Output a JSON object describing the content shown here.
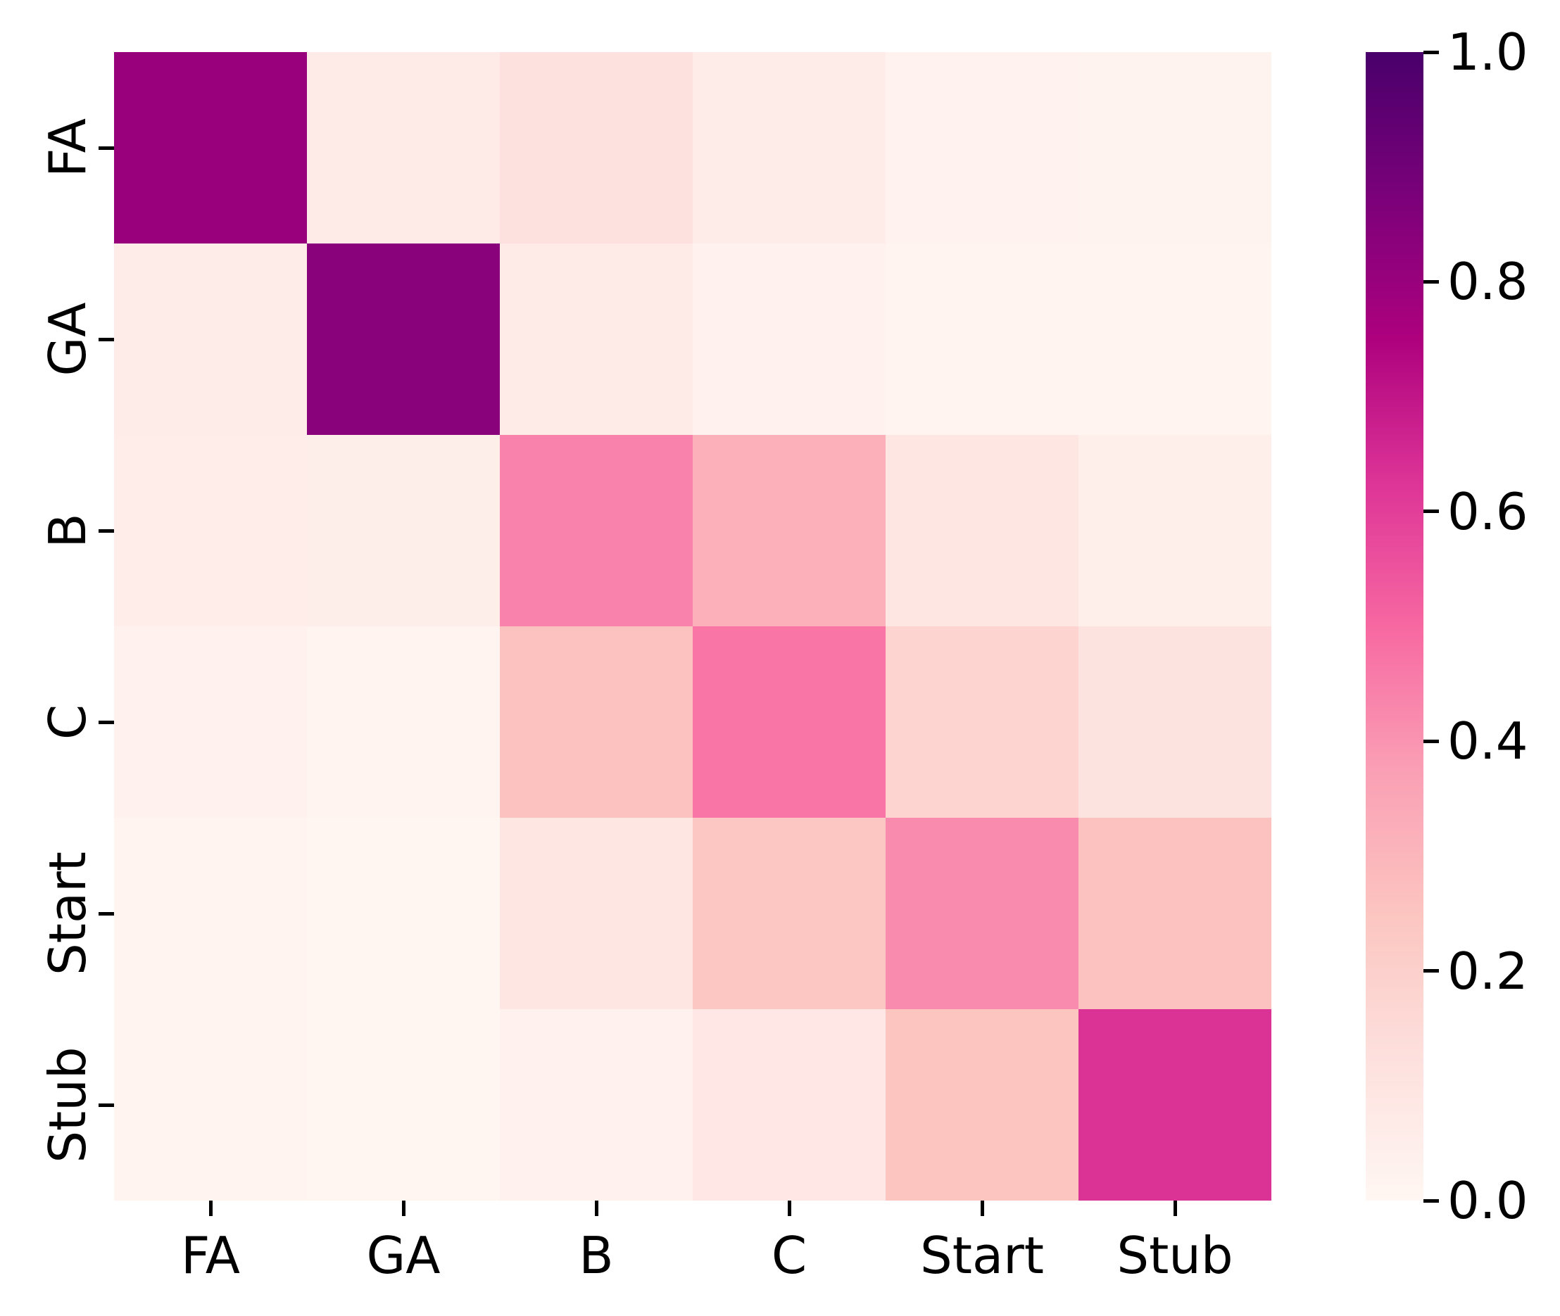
{
  "chart_data": {
    "type": "heatmap",
    "title": "",
    "xlabel": "",
    "ylabel": "",
    "x_categories": [
      "FA",
      "GA",
      "B",
      "C",
      "Start",
      "Stub"
    ],
    "y_categories": [
      "FA",
      "GA",
      "B",
      "C",
      "Start",
      "Stub"
    ],
    "matrix": [
      [
        0.8,
        0.07,
        0.12,
        0.06,
        0.025,
        0.02
      ],
      [
        0.06,
        0.84,
        0.07,
        0.03,
        0.015,
        0.015
      ],
      [
        0.055,
        0.05,
        0.44,
        0.32,
        0.09,
        0.045
      ],
      [
        0.03,
        0.015,
        0.26,
        0.47,
        0.18,
        0.11
      ],
      [
        0.015,
        0.01,
        0.09,
        0.24,
        0.42,
        0.26
      ],
      [
        0.015,
        0.01,
        0.03,
        0.085,
        0.25,
        0.63
      ]
    ],
    "value_range": [
      0.0,
      1.0
    ],
    "grid": false,
    "legend": false,
    "colormap": {
      "name": "RdPu",
      "stops": [
        {
          "t": 0.0,
          "color": "#FFF7F3"
        },
        {
          "t": 0.125,
          "color": "#FDE0DD"
        },
        {
          "t": 0.25,
          "color": "#FCC5C0"
        },
        {
          "t": 0.375,
          "color": "#FA9FB5"
        },
        {
          "t": 0.5,
          "color": "#F768A1"
        },
        {
          "t": 0.625,
          "color": "#DD3497"
        },
        {
          "t": 0.75,
          "color": "#AE017E"
        },
        {
          "t": 0.875,
          "color": "#7A017A"
        },
        {
          "t": 1.0,
          "color": "#49006A"
        }
      ]
    },
    "colorbar": {
      "position": "right",
      "min": 0.0,
      "max": 1.0,
      "tick_labels": [
        "1.0",
        "0.8",
        "0.6",
        "0.4",
        "0.2",
        "0.0"
      ],
      "tick_values": [
        1.0,
        0.8,
        0.6,
        0.4,
        0.2,
        0.0
      ]
    }
  }
}
